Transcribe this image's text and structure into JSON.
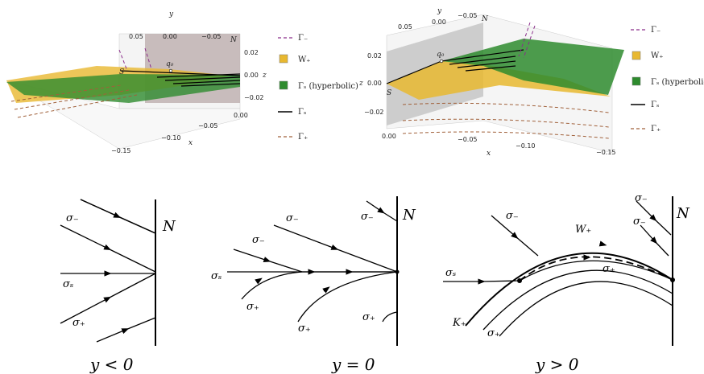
{
  "colors": {
    "gamma_minus": "#8b2d8b",
    "gamma_plus": "#a0603a",
    "w_plus": "#e8b830",
    "gamma_s_hyp": "#2e8b2e",
    "gamma_s": "#000000",
    "plane": "#b9a9a9"
  },
  "plot_left": {
    "axis_y_label": "y",
    "axis_z_label": "z",
    "axis_x_label": "x",
    "y_ticks": [
      "0.05",
      "0.00",
      "−0.05"
    ],
    "z_ticks": [
      "0.02",
      "0.00",
      "−0.02"
    ],
    "x_ticks": [
      "0.00",
      "−0.05",
      "−0.10",
      "−0.15"
    ],
    "label_N": "N",
    "label_S": "S",
    "label_q0": "q₀"
  },
  "plot_right": {
    "axis_y_label": "y",
    "axis_z_label": "z",
    "axis_x_label": "x",
    "y_ticks": [
      "0.05",
      "0.00",
      "−0.05"
    ],
    "z_ticks": [
      "0.02",
      "0.00",
      "−0.02"
    ],
    "x_ticks": [
      "0.00",
      "−0.05",
      "−0.10",
      "−0.15"
    ],
    "label_N": "N",
    "label_S": "S",
    "label_q0": "q₀"
  },
  "legend": [
    {
      "label": "Γ₋",
      "kind": "dash",
      "color": "#8b2d8b"
    },
    {
      "label": "W₊",
      "kind": "box",
      "color": "#e8b830"
    },
    {
      "label": "Γₛ (hyperbolic)",
      "kind": "box",
      "color": "#2e8b2e"
    },
    {
      "label": "Γₛ",
      "kind": "solid",
      "color": "#000000"
    },
    {
      "label": "Γ₊",
      "kind": "dash",
      "color": "#a0603a"
    }
  ],
  "sketch1": {
    "caption": "y < 0",
    "N": "N",
    "sigma_minus": "σ₋",
    "sigma_s": "σₛ",
    "sigma_plus": "σ₊"
  },
  "sketch2": {
    "caption": "y = 0",
    "N": "N",
    "sigma_minus": "σ₋",
    "sigma_s": "σₛ",
    "sigma_plus": "σ₊"
  },
  "sketch3": {
    "caption": "y > 0",
    "N": "N",
    "sigma_minus": "σ₋",
    "sigma_s": "σₛ",
    "sigma_plus": "σ₊",
    "W_plus": "W₊",
    "K_plus": "K₊"
  }
}
